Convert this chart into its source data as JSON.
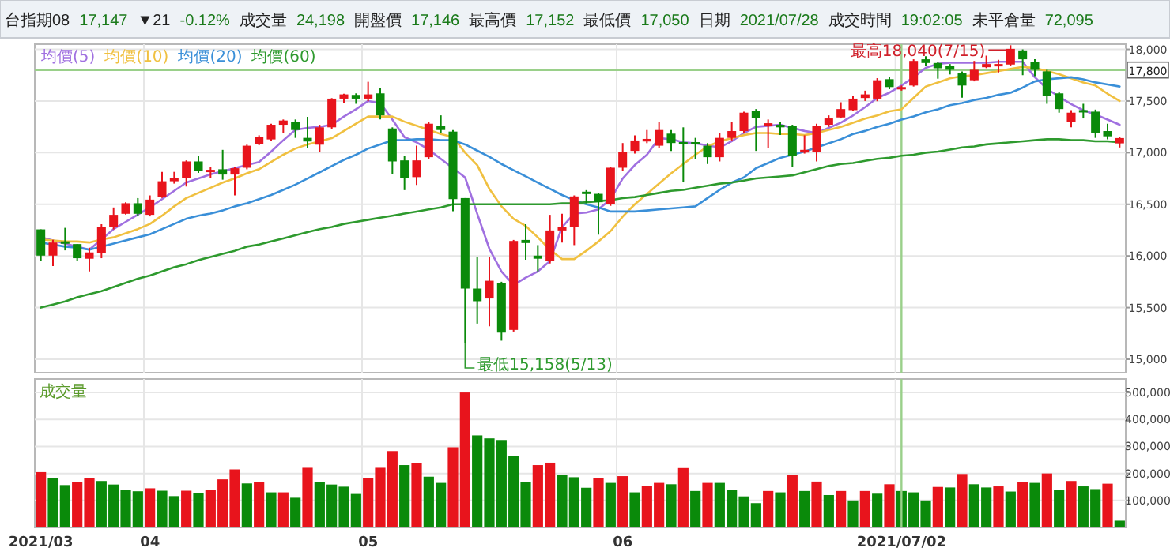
{
  "chart_data": [
    {
      "type": "other",
      "annotations": [
        "台指期08",
        "17,147",
        "▼21",
        "-0.12%",
        "成交量",
        "24,198",
        "開盤價",
        "17,146",
        "最高價",
        "17,152",
        "最低價",
        "17,050",
        "日期",
        "2021/07/28",
        "成交時間",
        "19:02:05",
        "未平倉量",
        "72,095"
      ]
    },
    {
      "type": "candlestick",
      "categories": [
        "2021/03",
        null,
        null,
        null,
        null,
        null,
        null,
        null,
        null,
        "04",
        null,
        null,
        null,
        null,
        null,
        null,
        null,
        null,
        null,
        null,
        null,
        null,
        null,
        null,
        null,
        null,
        null,
        "05",
        null,
        null,
        null,
        null,
        null,
        null,
        null,
        null,
        null,
        null,
        null,
        null,
        null,
        null,
        null,
        null,
        null,
        null,
        null,
        null,
        "06",
        null,
        null,
        null,
        null,
        null,
        null,
        null,
        null,
        null,
        null,
        null,
        null,
        null,
        null,
        null,
        null,
        null,
        null,
        null,
        null,
        null,
        null,
        "2021/07/02",
        null,
        null,
        null,
        null,
        null,
        null,
        null,
        null,
        null,
        null,
        null,
        null,
        null,
        null,
        null,
        null,
        null,
        null
      ],
      "ohlc": [
        [
          16257,
          16257,
          15953,
          16003
        ],
        [
          16003,
          16156,
          15902,
          16130
        ],
        [
          16141,
          16272,
          16054,
          16120
        ],
        [
          16115,
          16115,
          15953,
          15978
        ],
        [
          15973,
          16080,
          15851,
          16034
        ],
        [
          16029,
          16307,
          15978,
          16282
        ],
        [
          16282,
          16469,
          16257,
          16398
        ],
        [
          16408,
          16520,
          16400,
          16510
        ],
        [
          16510,
          16560,
          16383,
          16408
        ],
        [
          16398,
          16586,
          16383,
          16545
        ],
        [
          16571,
          16814,
          16561,
          16723
        ],
        [
          16723,
          16814,
          16700,
          16753
        ],
        [
          16753,
          16925,
          16672,
          16915
        ],
        [
          16915,
          16966,
          16804,
          16824
        ],
        [
          16814,
          16865,
          16753,
          16834
        ],
        [
          16839,
          17027,
          16738,
          16788
        ],
        [
          16788,
          16865,
          16586,
          16849
        ],
        [
          16854,
          17077,
          16839,
          17067
        ],
        [
          17082,
          17168,
          17072,
          17153
        ],
        [
          17128,
          17280,
          17118,
          17270
        ],
        [
          17270,
          17321,
          17194,
          17311
        ],
        [
          17296,
          17321,
          17143,
          17219
        ],
        [
          17143,
          17346,
          17042,
          17108
        ],
        [
          17077,
          17270,
          17007,
          17245
        ],
        [
          17245,
          17528,
          17230,
          17523
        ],
        [
          17523,
          17570,
          17480,
          17564
        ],
        [
          17559,
          17574,
          17473,
          17523
        ],
        [
          17523,
          17686,
          17498,
          17564
        ],
        [
          17574,
          17625,
          17321,
          17361
        ],
        [
          17234,
          17245,
          16789,
          16915
        ],
        [
          16925,
          16966,
          16637,
          16753
        ],
        [
          16763,
          17067,
          16687,
          16925
        ],
        [
          16956,
          17296,
          16941,
          17280
        ],
        [
          17260,
          17361,
          17194,
          17219
        ],
        [
          17204,
          17219,
          16434,
          16550
        ],
        [
          16560,
          16560,
          15158,
          15684
        ],
        [
          15684,
          15993,
          15345,
          15562
        ],
        [
          15588,
          15993,
          15319,
          15760
        ],
        [
          15735,
          15750,
          15180,
          15258
        ],
        [
          15284,
          16155,
          15268,
          16145
        ],
        [
          16155,
          16307,
          15963,
          16125
        ],
        [
          16003,
          16105,
          15851,
          15973
        ],
        [
          15953,
          16398,
          15927,
          16247
        ],
        [
          16247,
          16408,
          16130,
          16282
        ],
        [
          16282,
          16586,
          16105,
          16576
        ],
        [
          16622,
          16637,
          16510,
          16601
        ],
        [
          16601,
          16611,
          16206,
          16520
        ],
        [
          16500,
          16865,
          16485,
          16854
        ],
        [
          16854,
          17093,
          16824,
          17007
        ],
        [
          17017,
          17168,
          16991,
          17118
        ],
        [
          17108,
          17219,
          17092,
          17133
        ],
        [
          17067,
          17296,
          17042,
          17219
        ],
        [
          17184,
          17219,
          17017,
          17093
        ],
        [
          17102,
          17245,
          16712,
          17082
        ],
        [
          17102,
          17143,
          16941,
          17082
        ],
        [
          17067,
          17093,
          16890,
          16956
        ],
        [
          16956,
          17194,
          16915,
          17143
        ],
        [
          17143,
          17296,
          17118,
          17209
        ],
        [
          17209,
          17397,
          17194,
          17387
        ],
        [
          17407,
          17422,
          17017,
          17336
        ],
        [
          17255,
          17321,
          17042,
          17285
        ],
        [
          17270,
          17300,
          17170,
          17245
        ],
        [
          17255,
          17270,
          16865,
          16966
        ],
        [
          17001,
          17168,
          16991,
          17027
        ],
        [
          17007,
          17280,
          16915,
          17260
        ],
        [
          17270,
          17361,
          17250,
          17331
        ],
        [
          17341,
          17488,
          17331,
          17422
        ],
        [
          17412,
          17549,
          17400,
          17523
        ],
        [
          17529,
          17600,
          17500,
          17564
        ],
        [
          17523,
          17721,
          17498,
          17701
        ],
        [
          17711,
          17736,
          17615,
          17635
        ],
        [
          17615,
          17650,
          17600,
          17635
        ],
        [
          17650,
          17904,
          17640,
          17888
        ],
        [
          17904,
          17934,
          17843,
          17868
        ],
        [
          17868,
          17878,
          17716,
          17817
        ],
        [
          17838,
          17858,
          17757,
          17802
        ],
        [
          17767,
          17787,
          17533,
          17650
        ],
        [
          17701,
          17888,
          17690,
          17802
        ],
        [
          17827,
          17939,
          17818,
          17858
        ],
        [
          17838,
          17899,
          17777,
          17858
        ],
        [
          17853,
          18040,
          17843,
          18005
        ],
        [
          17990,
          18000,
          17750,
          17904
        ],
        [
          17878,
          17904,
          17740,
          17802
        ],
        [
          17787,
          17802,
          17473,
          17549
        ],
        [
          17574,
          17590,
          17387,
          17422
        ],
        [
          17296,
          17412,
          17245,
          17387
        ],
        [
          17412,
          17473,
          17331,
          17397
        ],
        [
          17397,
          17417,
          17143,
          17194
        ],
        [
          17209,
          17280,
          17128,
          17158
        ],
        [
          17090,
          17152,
          17050,
          17141
        ]
      ],
      "series": [
        {
          "name": "均價(5)",
          "type": "line",
          "color": "#a070e0",
          "values": [
            16180,
            16150,
            16120,
            16090,
            16060,
            16160,
            16260,
            16330,
            16400,
            16470,
            16550,
            16630,
            16710,
            16750,
            16790,
            16820,
            16850,
            16880,
            16910,
            17010,
            17120,
            17220,
            17240,
            17250,
            17270,
            17350,
            17420,
            17500,
            17480,
            17320,
            17150,
            17100,
            17030,
            16940,
            16850,
            16760,
            16410,
            16070,
            15850,
            15720,
            15790,
            15850,
            15950,
            16280,
            16410,
            16420,
            16450,
            16550,
            16750,
            16880,
            16980,
            17140,
            17130,
            17100,
            17090,
            17070,
            17050,
            17110,
            17190,
            17250,
            17260,
            17270,
            17240,
            17210,
            17190,
            17240,
            17290,
            17360,
            17440,
            17530,
            17580,
            17650,
            17730,
            17820,
            17860,
            17870,
            17870,
            17870,
            17870,
            17880,
            17880,
            17880,
            17730,
            17620,
            17540,
            17470,
            17410,
            17370,
            17320,
            17270
          ]
        },
        {
          "name": "均價(10)",
          "type": "line",
          "color": "#f0c040",
          "values": [
            16160,
            16150,
            16140,
            16140,
            16130,
            16160,
            16180,
            16220,
            16260,
            16310,
            16390,
            16480,
            16560,
            16610,
            16660,
            16710,
            16750,
            16800,
            16840,
            16910,
            16980,
            17040,
            17080,
            17110,
            17140,
            17210,
            17280,
            17350,
            17350,
            17350,
            17300,
            17260,
            17220,
            17180,
            17150,
            17000,
            16880,
            16650,
            16480,
            16360,
            16290,
            16180,
            16060,
            15970,
            15970,
            16050,
            16140,
            16240,
            16380,
            16500,
            16600,
            16700,
            16800,
            16890,
            16980,
            17060,
            17110,
            17140,
            17170,
            17190,
            17190,
            17180,
            17180,
            17170,
            17190,
            17220,
            17250,
            17290,
            17330,
            17360,
            17400,
            17420,
            17530,
            17640,
            17680,
            17720,
            17740,
            17750,
            17770,
            17790,
            17810,
            17830,
            17820,
            17790,
            17760,
            17720,
            17680,
            17650,
            17570,
            17500
          ]
        },
        {
          "name": "均價(20)",
          "type": "line",
          "color": "#3a8fd8",
          "values": [
            16130,
            16110,
            16090,
            16080,
            16060,
            16090,
            16120,
            16150,
            16180,
            16210,
            16260,
            16310,
            16360,
            16390,
            16410,
            16440,
            16480,
            16510,
            16550,
            16590,
            16640,
            16690,
            16750,
            16810,
            16870,
            16930,
            16980,
            17040,
            17080,
            17120,
            17120,
            17130,
            17130,
            17120,
            17120,
            17080,
            17020,
            16960,
            16890,
            16830,
            16770,
            16710,
            16650,
            16590,
            16540,
            16500,
            16470,
            16430,
            16430,
            16430,
            16440,
            16450,
            16460,
            16470,
            16480,
            16560,
            16640,
            16710,
            16760,
            16850,
            16900,
            16950,
            16980,
            17010,
            17050,
            17090,
            17130,
            17180,
            17210,
            17250,
            17280,
            17320,
            17350,
            17390,
            17420,
            17460,
            17480,
            17510,
            17530,
            17560,
            17580,
            17630,
            17690,
            17710,
            17720,
            17730,
            17710,
            17680,
            17660,
            17640
          ]
        },
        {
          "name": "均價(60)",
          "type": "line",
          "color": "#2e9a2e",
          "values": [
            15500,
            15530,
            15560,
            15600,
            15630,
            15660,
            15700,
            15740,
            15780,
            15810,
            15850,
            15890,
            15920,
            15960,
            15990,
            16020,
            16050,
            16090,
            16110,
            16140,
            16170,
            16200,
            16230,
            16260,
            16280,
            16310,
            16330,
            16350,
            16370,
            16390,
            16410,
            16430,
            16450,
            16470,
            16500,
            16500,
            16500,
            16500,
            16500,
            16500,
            16500,
            16500,
            16500,
            16510,
            16510,
            16520,
            16530,
            16540,
            16560,
            16570,
            16590,
            16610,
            16630,
            16640,
            16660,
            16680,
            16700,
            16710,
            16730,
            16750,
            16760,
            16770,
            16780,
            16810,
            16840,
            16870,
            16890,
            16900,
            16920,
            16940,
            16950,
            16970,
            16980,
            17000,
            17010,
            17030,
            17050,
            17060,
            17080,
            17090,
            17100,
            17110,
            17120,
            17130,
            17130,
            17120,
            17120,
            17110,
            17110,
            17100
          ]
        }
      ],
      "ylim": [
        14870,
        18050
      ],
      "yticks": [
        {
          "value": 15000,
          "label": "15,000"
        },
        {
          "value": 15500,
          "label": "15,500"
        },
        {
          "value": 16000,
          "label": "16,000"
        },
        {
          "value": 16500,
          "label": "16,500"
        },
        {
          "value": 17000,
          "label": "17,000"
        },
        {
          "value": 17500,
          "label": "17,500"
        },
        {
          "value": 18000,
          "label": "18,000"
        }
      ],
      "tick_labels": "y",
      "grid": true,
      "legend": "top left",
      "line_style": "solid",
      "ref_lines": [
        {
          "axis": "y",
          "value": 17800,
          "label": "17,800",
          "color": "#9ad08a"
        },
        {
          "axis": "x",
          "value": "2021/07/02",
          "color": "#9ad08a"
        }
      ],
      "annotations": [
        "最高18,040(7/15)",
        "最低15,158(5/13)"
      ]
    },
    {
      "type": "bar",
      "title": "成交量",
      "categories": [
        "2021/03",
        null,
        null,
        null,
        null,
        null,
        null,
        null,
        null,
        "04",
        null,
        null,
        null,
        null,
        null,
        null,
        null,
        null,
        null,
        null,
        null,
        null,
        null,
        null,
        null,
        null,
        null,
        "05",
        null,
        null,
        null,
        null,
        null,
        null,
        null,
        null,
        null,
        null,
        null,
        null,
        null,
        null,
        null,
        null,
        null,
        null,
        null,
        null,
        "06",
        null,
        null,
        null,
        null,
        null,
        null,
        null,
        null,
        null,
        null,
        null,
        null,
        null,
        null,
        null,
        null,
        null,
        null,
        null,
        null,
        null,
        null,
        "2021/07/02",
        null,
        null,
        null,
        null,
        null,
        null,
        null,
        null,
        null,
        null,
        null,
        null,
        null,
        null,
        null,
        null,
        null,
        null
      ],
      "values": [
        205000,
        184000,
        157000,
        167000,
        182000,
        172000,
        159000,
        138000,
        134000,
        145000,
        136000,
        116000,
        136000,
        126000,
        138000,
        178000,
        215000,
        163000,
        169000,
        130000,
        130000,
        110000,
        221000,
        169000,
        159000,
        151000,
        124000,
        182000,
        221000,
        283000,
        231000,
        238000,
        188000,
        165000,
        297000,
        500000,
        341000,
        330000,
        324000,
        266000,
        167000,
        231000,
        240000,
        196000,
        186000,
        147000,
        184000,
        165000,
        190000,
        130000,
        155000,
        165000,
        160000,
        220000,
        135000,
        165000,
        165000,
        140000,
        115000,
        90000,
        135000,
        130000,
        195000,
        135000,
        170000,
        120000,
        135000,
        100000,
        135000,
        125000,
        160000,
        135000,
        130000,
        100000,
        150000,
        148000,
        198000,
        160000,
        148000,
        152000,
        133000,
        168000,
        165000,
        200000,
        138000,
        172000,
        152000,
        142000,
        162000,
        25000
      ],
      "colors": [
        "#e8141c",
        "#0a8a0a",
        "#0a8a0a",
        "#e8141c",
        "#e8141c",
        "#0a8a0a",
        "#0a8a0a",
        "#0a8a0a",
        "#0a8a0a",
        "#e8141c",
        "#0a8a0a",
        "#0a8a0a",
        "#e8141c",
        "#0a8a0a",
        "#e8141c",
        "#e8141c",
        "#e8141c",
        "#0a8a0a",
        "#e8141c",
        "#0a8a0a",
        "#e8141c",
        "#0a8a0a",
        "#e8141c",
        "#0a8a0a",
        "#0a8a0a",
        "#0a8a0a",
        "#0a8a0a",
        "#e8141c",
        "#e8141c",
        "#e8141c",
        "#0a8a0a",
        "#e8141c",
        "#0a8a0a",
        "#0a8a0a",
        "#e8141c",
        "#e8141c",
        "#0a8a0a",
        "#0a8a0a",
        "#0a8a0a",
        "#0a8a0a",
        "#0a8a0a",
        "#e8141c",
        "#e8141c",
        "#0a8a0a",
        "#0a8a0a",
        "#0a8a0a",
        "#e8141c",
        "#0a8a0a",
        "#e8141c",
        "#0a8a0a",
        "#e8141c",
        "#e8141c",
        "#0a8a0a",
        "#e8141c",
        "#0a8a0a",
        "#e8141c",
        "#0a8a0a",
        "#0a8a0a",
        "#0a8a0a",
        "#0a8a0a",
        "#e8141c",
        "#0a8a0a",
        "#e8141c",
        "#0a8a0a",
        "#e8141c",
        "#0a8a0a",
        "#e8141c",
        "#0a8a0a",
        "#e8141c",
        "#0a8a0a",
        "#e8141c",
        "#0a8a0a",
        "#0a8a0a",
        "#0a8a0a",
        "#e8141c",
        "#0a8a0a",
        "#e8141c",
        "#0a8a0a",
        "#0a8a0a",
        "#e8141c",
        "#0a8a0a",
        "#e8141c",
        "#0a8a0a",
        "#e8141c",
        "#0a8a0a",
        "#e8141c",
        "#0a8a0a",
        "#0a8a0a",
        "#e8141c",
        "#0a8a0a"
      ],
      "ylim": [
        0,
        550000
      ],
      "yticks": [
        {
          "value": 100000,
          "label": "100,000"
        },
        {
          "value": 200000,
          "label": "200,000"
        },
        {
          "value": 300000,
          "label": "300,000"
        },
        {
          "value": 400000,
          "label": "400,000"
        },
        {
          "value": 500000,
          "label": "500,000"
        }
      ],
      "grid": true,
      "ref_lines": [
        {
          "axis": "x",
          "value": "2021/07/02",
          "color": "#9ad08a"
        }
      ]
    }
  ]
}
